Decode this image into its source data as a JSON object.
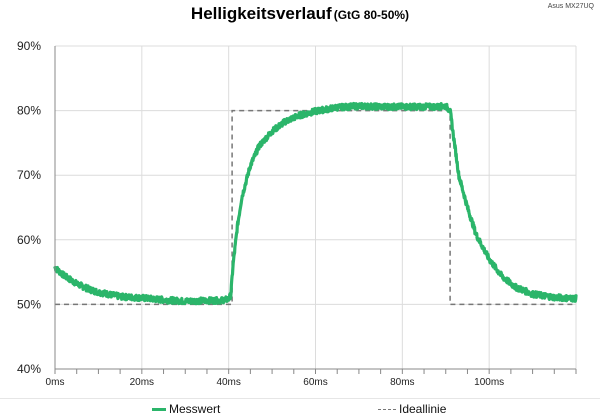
{
  "chart_data": {
    "type": "line",
    "title": "Helligkeitsverlauf",
    "subtitle": "(GtG 80-50%)",
    "device_label": "Asus MX27UQ",
    "xlabel": "",
    "ylabel": "",
    "xlim": [
      0,
      120
    ],
    "ylim": [
      40,
      90
    ],
    "x_ticks": [
      0,
      20,
      40,
      60,
      80,
      100
    ],
    "x_tick_labels": [
      "0ms",
      "20ms",
      "40ms",
      "60ms",
      "80ms",
      "100ms"
    ],
    "y_ticks": [
      40,
      50,
      60,
      70,
      80,
      90
    ],
    "y_tick_labels": [
      "40%",
      "50%",
      "60%",
      "70%",
      "80%",
      "90%"
    ],
    "grid": true,
    "legend_position": "bottom",
    "series": [
      {
        "name": "Messwert",
        "color": "#2bb56a",
        "style": "solid",
        "x": [
          0,
          2,
          5,
          8,
          10,
          15,
          20,
          25,
          30,
          35,
          38,
          40,
          40.5,
          41,
          42,
          43,
          45,
          47,
          50,
          53,
          56,
          60,
          65,
          70,
          75,
          80,
          85,
          88,
          90,
          91,
          92,
          93,
          95,
          97,
          100,
          103,
          106,
          110,
          115,
          120
        ],
        "y": [
          55.7,
          54.5,
          53.2,
          52.3,
          51.9,
          51.2,
          51.0,
          50.7,
          50.5,
          50.6,
          50.6,
          50.8,
          51.5,
          56.0,
          62.0,
          66.5,
          71.5,
          74.5,
          76.8,
          78.3,
          79.2,
          79.9,
          80.5,
          80.7,
          80.6,
          80.6,
          80.6,
          80.6,
          80.7,
          80.0,
          75.0,
          70.0,
          65.0,
          60.8,
          57.0,
          54.3,
          52.7,
          51.6,
          51.1,
          50.9
        ]
      },
      {
        "name": "Ideallinie",
        "color": "#777777",
        "style": "dashed",
        "x": [
          0,
          40.8,
          40.8,
          91.0,
          91.0,
          120
        ],
        "y": [
          50,
          50,
          80,
          80,
          50,
          50
        ]
      }
    ]
  }
}
